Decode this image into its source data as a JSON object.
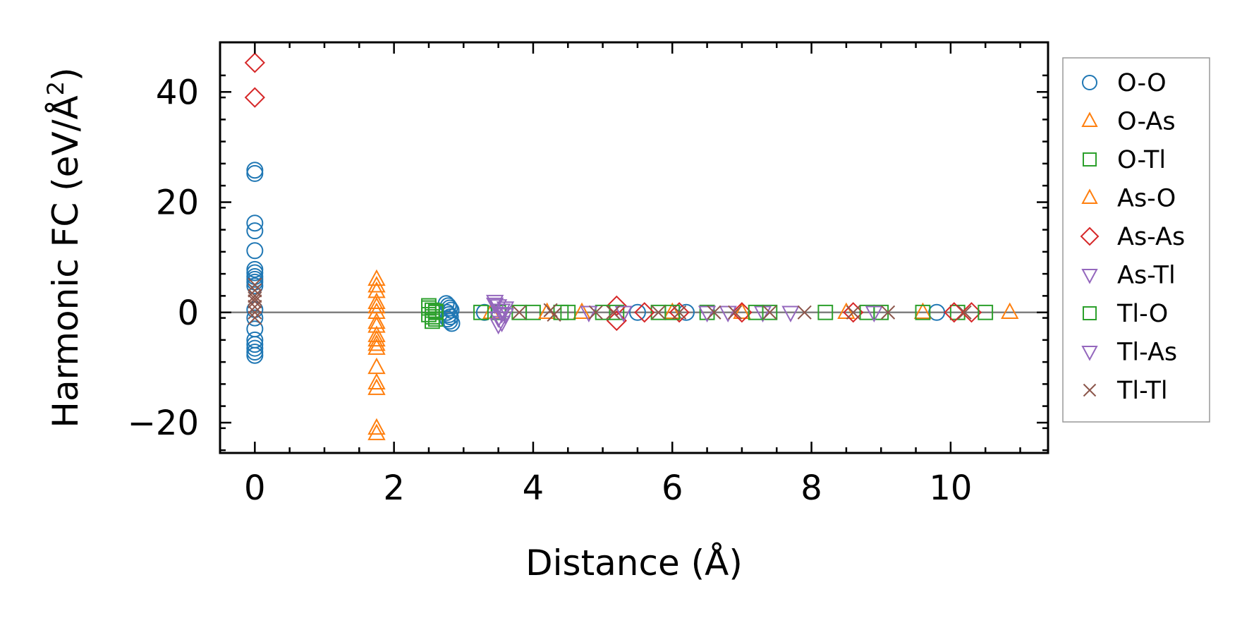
{
  "chart_data": {
    "type": "scatter",
    "title": "",
    "xlabel": "Distance (Å)",
    "ylabel_main": "Harmonic FC (eV/Å",
    "ylabel_sup": "2",
    "ylabel_close": ")",
    "xlim": [
      -0.5,
      11.4
    ],
    "ylim": [
      -25.5,
      49
    ],
    "xticks": [
      0,
      2,
      4,
      6,
      8,
      10
    ],
    "xtick_labels": [
      "0",
      "2",
      "4",
      "6",
      "8",
      "10"
    ],
    "yticks": [
      -20,
      0,
      20,
      40
    ],
    "ytick_labels": [
      "−20",
      "0",
      "20",
      "40"
    ],
    "zero_line": true,
    "grid": false,
    "legend_position": "outside-right",
    "series": [
      {
        "name": "O-O",
        "marker": "circle",
        "color": "#1f77b4",
        "x": [
          0,
          0,
          0,
          0,
          0,
          0,
          0,
          0,
          0,
          0,
          0,
          0,
          0,
          0,
          0,
          0,
          0,
          0,
          0,
          2.75,
          2.78,
          2.8,
          2.82,
          2.76,
          2.79,
          2.81,
          2.77,
          2.8,
          2.83,
          3.3,
          5.5,
          6.2,
          9.8
        ],
        "y": [
          25.8,
          25.2,
          16.2,
          14.8,
          11.2,
          7.8,
          7.2,
          6.5,
          6.0,
          5.5,
          4.8,
          -3.0,
          -5.0,
          -5.8,
          -6.5,
          -7.2,
          -7.8,
          0.5,
          -1.0,
          1.6,
          1.2,
          0.8,
          0.4,
          0,
          -0.4,
          -0.8,
          -1.2,
          -1.6,
          -2.0,
          0,
          0,
          0,
          0
        ]
      },
      {
        "name": "O-As",
        "marker": "triangle-up",
        "color": "#ff7f0e",
        "x": [
          1.75,
          1.75,
          1.75,
          1.75,
          1.75,
          1.75,
          1.75,
          1.75,
          1.75,
          1.75,
          1.75,
          1.75,
          1.75,
          1.75,
          1.75,
          1.75,
          3.4,
          4.7,
          7.0,
          9.6,
          10.85
        ],
        "y": [
          6.0,
          4.8,
          3.8,
          1.8,
          1.0,
          -1.8,
          -2.5,
          -4.2,
          -5.0,
          -5.8,
          -6.5,
          -10.0,
          -12.8,
          -13.8,
          -21.0,
          -22.0,
          0,
          0,
          0,
          0,
          0
        ]
      },
      {
        "name": "O-Tl",
        "marker": "square",
        "color": "#2ca02c",
        "x": [
          2.5,
          2.55,
          2.6,
          2.5,
          2.55,
          2.6,
          2.5,
          2.55,
          2.6,
          3.25,
          3.5,
          3.8,
          4.0,
          4.5,
          5.2,
          5.8,
          6.5,
          7.4,
          8.2,
          9.0,
          9.6,
          10.1
        ],
        "y": [
          0.8,
          0.4,
          0,
          -0.4,
          -0.8,
          -1.2,
          1.2,
          -1.6,
          0.2,
          0,
          0,
          0,
          0,
          0,
          0,
          0,
          0,
          0,
          0,
          0,
          0,
          0
        ]
      },
      {
        "name": "As-O",
        "marker": "triangle-up",
        "color": "#ff7f0e",
        "x": [
          1.75,
          4.2,
          6.0,
          8.5
        ],
        "y": [
          0,
          0,
          0,
          0
        ]
      },
      {
        "name": "As-As",
        "marker": "diamond",
        "color": "#d62728",
        "x": [
          0,
          0,
          5.2,
          5.2,
          5.6,
          6.1,
          7.0,
          8.6,
          10.05,
          10.3
        ],
        "y": [
          45.3,
          39.0,
          -1.5,
          1.2,
          0,
          0,
          0,
          0,
          0,
          0
        ]
      },
      {
        "name": "As-Tl",
        "marker": "triangle-down",
        "color": "#9467bd",
        "x": [
          3.45,
          3.5,
          3.55,
          3.6,
          3.45,
          3.5,
          3.55,
          3.6,
          3.5,
          3.55,
          6.5,
          7.3,
          7.7
        ],
        "y": [
          2.0,
          1.2,
          0.4,
          -0.4,
          1.5,
          -1.0,
          -1.8,
          0.8,
          -2.2,
          -0.2,
          0,
          0,
          0
        ]
      },
      {
        "name": "Tl-O",
        "marker": "square",
        "color": "#2ca02c",
        "x": [
          4.4,
          5.0,
          6.0,
          7.2,
          8.8,
          10.5
        ],
        "y": [
          0,
          0,
          0,
          0,
          0,
          0
        ]
      },
      {
        "name": "Tl-As",
        "marker": "triangle-down",
        "color": "#9467bd",
        "x": [
          4.8,
          5.3,
          6.8,
          8.9
        ],
        "y": [
          0,
          0,
          0,
          0
        ]
      },
      {
        "name": "Tl-Tl",
        "marker": "x",
        "color": "#8c564b",
        "x": [
          0,
          0,
          0,
          0,
          0,
          0,
          0,
          0,
          3.8,
          4.25,
          4.3,
          4.9,
          5.15,
          5.8,
          6.1,
          6.6,
          6.9,
          7.4,
          7.9,
          8.6,
          9.1,
          10.2
        ],
        "y": [
          5.0,
          4.0,
          3.0,
          2.5,
          2.0,
          1.0,
          0,
          -1.0,
          0,
          0.4,
          -0.4,
          0,
          0,
          0,
          0,
          0,
          0,
          0,
          0,
          0,
          0,
          0
        ]
      }
    ]
  }
}
